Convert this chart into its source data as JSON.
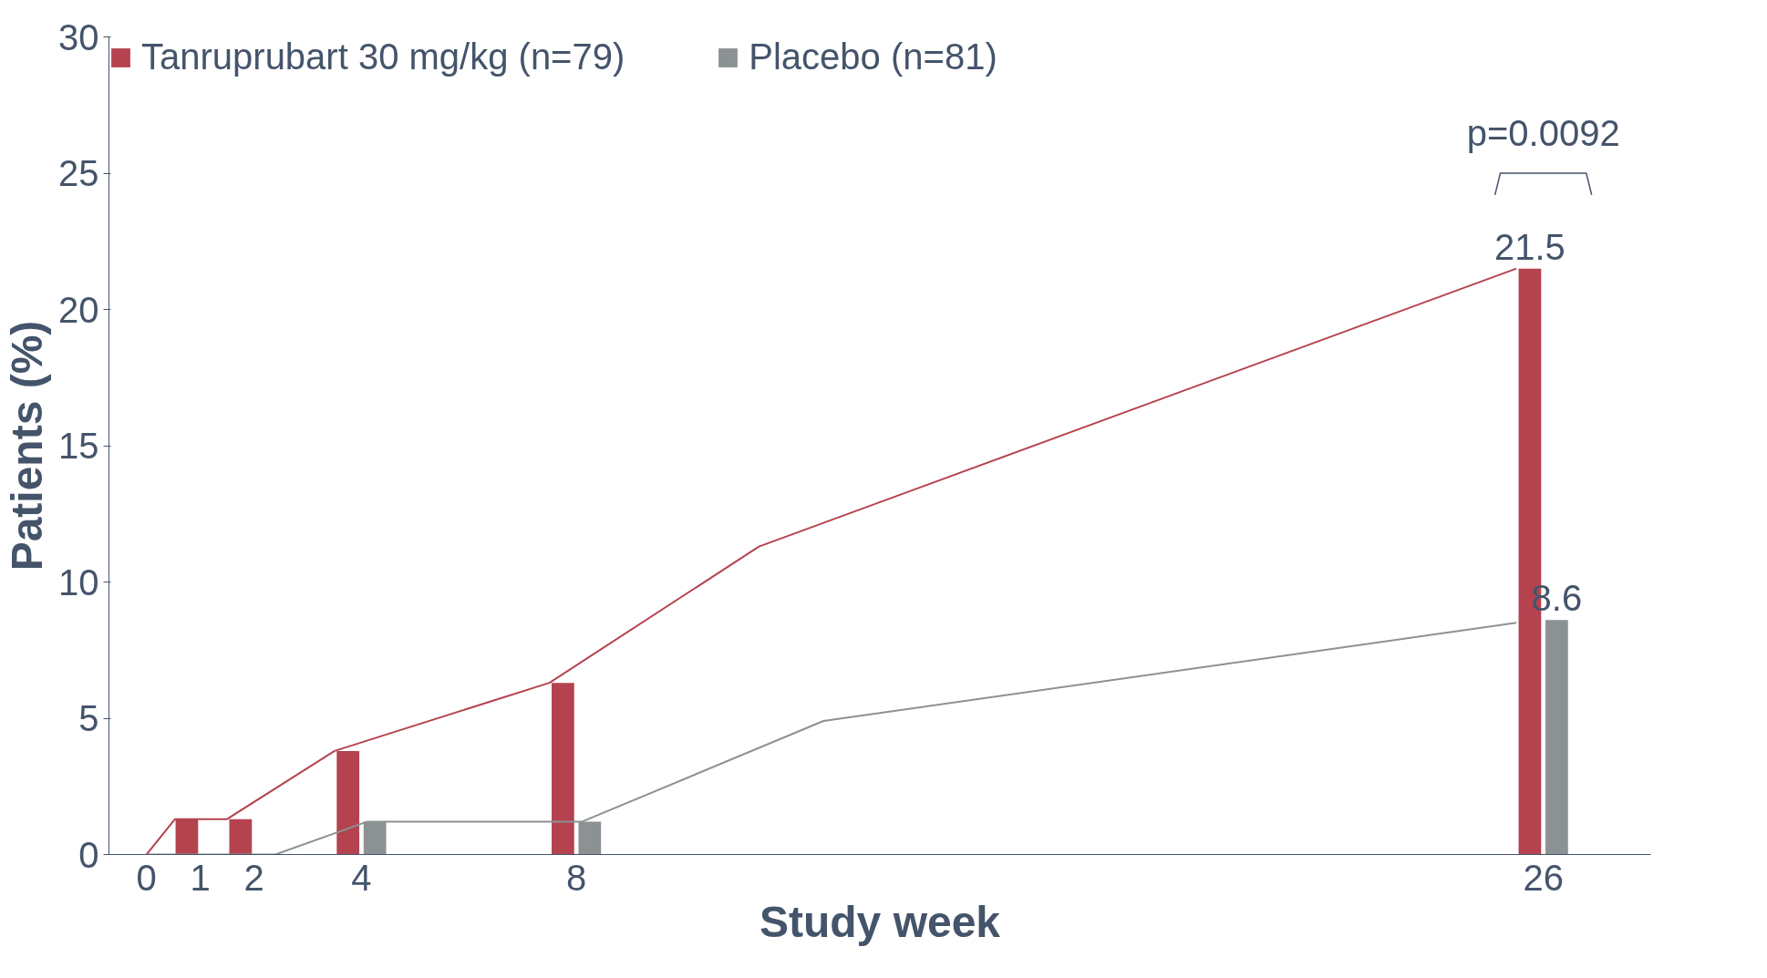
{
  "chart_data": {
    "type": "bar",
    "xlabel": "Study week",
    "ylabel": "Patients (%)",
    "xlim": [
      -0.7,
      28
    ],
    "xticks": [
      0,
      1,
      2,
      4,
      8,
      26
    ],
    "ylim": [
      0,
      30
    ],
    "yticks": [
      0,
      5,
      10,
      15,
      20,
      25,
      30
    ],
    "grid": false,
    "legend": "top",
    "series": [
      {
        "name": "Tanruprubart 30 mg/kg (n=79)",
        "color": "#b5434f",
        "x": [
          1,
          2,
          4,
          8,
          26
        ],
        "values": [
          1.3,
          1.3,
          3.8,
          6.3,
          21.5
        ],
        "value_labels": [
          null,
          null,
          null,
          null,
          "21.5"
        ]
      },
      {
        "name": "Placebo (n=81)",
        "color": "#8c9194",
        "x": [
          1,
          2,
          4,
          8,
          26
        ],
        "values": [
          0,
          0,
          1.2,
          1.2,
          8.6
        ],
        "value_labels": [
          null,
          null,
          null,
          null,
          "8.6"
        ]
      },
      {
        "type": "line",
        "color": "#b5434f",
        "x": [
          0,
          0.53,
          1.5,
          3.5,
          7.5,
          11.4,
          25.5
        ],
        "values": [
          0,
          1.3,
          1.3,
          3.8,
          6.3,
          11.3,
          21.5
        ]
      },
      {
        "type": "line",
        "color": "#8c9194",
        "x": [
          0,
          2.4,
          4.1,
          8.1,
          12.6,
          25.5
        ],
        "values": [
          0,
          0,
          1.2,
          1.2,
          4.9,
          8.5
        ]
      }
    ],
    "annotations": [
      "p=0.0092"
    ]
  }
}
